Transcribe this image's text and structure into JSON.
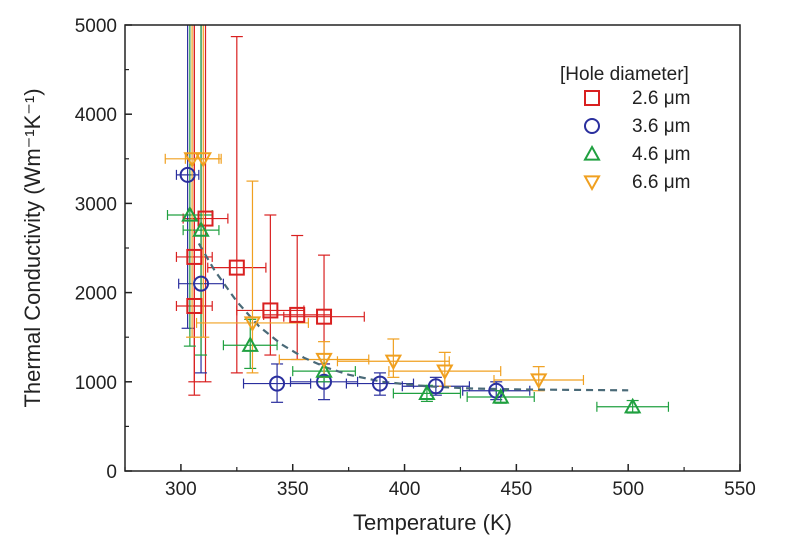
{
  "chart_data": {
    "type": "scatter",
    "title": "",
    "xlabel": "Temperature (K)",
    "ylabel": "Thermal Conductivity (Wm⁻¹K⁻¹)",
    "xlim": [
      275,
      550
    ],
    "ylim": [
      0,
      5000
    ],
    "x_ticks": [
      "300",
      "350",
      "400",
      "450",
      "500",
      "550"
    ],
    "y_ticks": [
      "0",
      "1000",
      "2000",
      "3000",
      "4000",
      "5000"
    ],
    "x_tick_values": [
      300,
      350,
      400,
      450,
      500,
      550
    ],
    "y_tick_values": [
      0,
      1000,
      2000,
      3000,
      4000,
      5000
    ],
    "grid": false,
    "legend": {
      "title": "[Hole diameter]",
      "position": "top-right",
      "unit_label": "μm"
    },
    "series": [
      {
        "name": "2.6",
        "marker": "square",
        "color": "#d92020",
        "points": [
          {
            "x": 306,
            "y": 1850,
            "xerr": 8,
            "ylo": 850,
            "yhi": 5000
          },
          {
            "x": 306,
            "y": 2400,
            "xerr": 8,
            "ylo": 1000,
            "yhi": 5000
          },
          {
            "x": 311,
            "y": 2830,
            "xerr": 10,
            "ylo": 1000,
            "yhi": 5000
          },
          {
            "x": 325,
            "y": 2280,
            "xerr": 13,
            "ylo": 1100,
            "yhi": 4870
          },
          {
            "x": 340,
            "y": 1800,
            "xerr": 15,
            "ylo": 1300,
            "yhi": 2870
          },
          {
            "x": 352,
            "y": 1750,
            "xerr": 15,
            "ylo": 1250,
            "yhi": 2640
          },
          {
            "x": 364,
            "y": 1730,
            "xerr": 18,
            "ylo": 1200,
            "yhi": 2420
          }
        ]
      },
      {
        "name": "3.6",
        "marker": "circle",
        "color": "#2a2f9e",
        "points": [
          {
            "x": 303,
            "y": 3320,
            "xerr": 5,
            "ylo": 1600,
            "yhi": 5000
          },
          {
            "x": 309,
            "y": 2100,
            "xerr": 10,
            "ylo": 1100,
            "yhi": 5000
          },
          {
            "x": 343,
            "y": 980,
            "xerr": 15,
            "ylo": 770,
            "yhi": 1200
          },
          {
            "x": 364,
            "y": 1000,
            "xerr": 15,
            "ylo": 800,
            "yhi": 1200
          },
          {
            "x": 389,
            "y": 980,
            "xerr": 15,
            "ylo": 850,
            "yhi": 1100
          },
          {
            "x": 414,
            "y": 950,
            "xerr": 15,
            "ylo": 850,
            "yhi": 1050
          },
          {
            "x": 441,
            "y": 900,
            "xerr": 15,
            "ylo": 800,
            "yhi": 1000
          }
        ]
      },
      {
        "name": "4.6",
        "marker": "triangle-up",
        "color": "#20a040",
        "points": [
          {
            "x": 304,
            "y": 2870,
            "xerr": 10,
            "ylo": 1400,
            "yhi": 5000
          },
          {
            "x": 309,
            "y": 2700,
            "xerr": 8,
            "ylo": 1300,
            "yhi": 5000
          },
          {
            "x": 331,
            "y": 1410,
            "xerr": 12,
            "ylo": 1150,
            "yhi": 1700
          },
          {
            "x": 364,
            "y": 1120,
            "xerr": 14,
            "ylo": 1000,
            "yhi": 1250
          },
          {
            "x": 410,
            "y": 870,
            "xerr": 15,
            "ylo": 780,
            "yhi": 960
          },
          {
            "x": 443,
            "y": 830,
            "xerr": 15,
            "ylo": 760,
            "yhi": 900
          },
          {
            "x": 502,
            "y": 720,
            "xerr": 16,
            "ylo": 650,
            "yhi": 790
          }
        ]
      },
      {
        "name": "6.6",
        "marker": "triangle-down",
        "color": "#f0a020",
        "points": [
          {
            "x": 305,
            "y": 3500,
            "xerr": 12,
            "ylo": 1500,
            "yhi": 5000
          },
          {
            "x": 310,
            "y": 3500,
            "xerr": 8,
            "ylo": 1500,
            "yhi": 5000
          },
          {
            "x": 332,
            "y": 1660,
            "xerr": 25,
            "ylo": 1100,
            "yhi": 3250
          },
          {
            "x": 364,
            "y": 1250,
            "xerr": 20,
            "ylo": 1050,
            "yhi": 1450
          },
          {
            "x": 395,
            "y": 1230,
            "xerr": 25,
            "ylo": 1050,
            "yhi": 1480
          },
          {
            "x": 418,
            "y": 1120,
            "xerr": 25,
            "ylo": 950,
            "yhi": 1330
          },
          {
            "x": 460,
            "y": 1020,
            "xerr": 20,
            "ylo": 900,
            "yhi": 1170
          }
        ]
      }
    ],
    "fit_curve": {
      "style": "dashed",
      "color": "#4a6a78",
      "x": [
        308,
        315,
        325,
        335,
        345,
        355,
        365,
        375,
        390,
        410,
        430,
        450,
        470,
        500
      ],
      "y": [
        2550,
        2250,
        1900,
        1620,
        1420,
        1270,
        1160,
        1080,
        1000,
        950,
        925,
        915,
        910,
        905
      ]
    }
  }
}
